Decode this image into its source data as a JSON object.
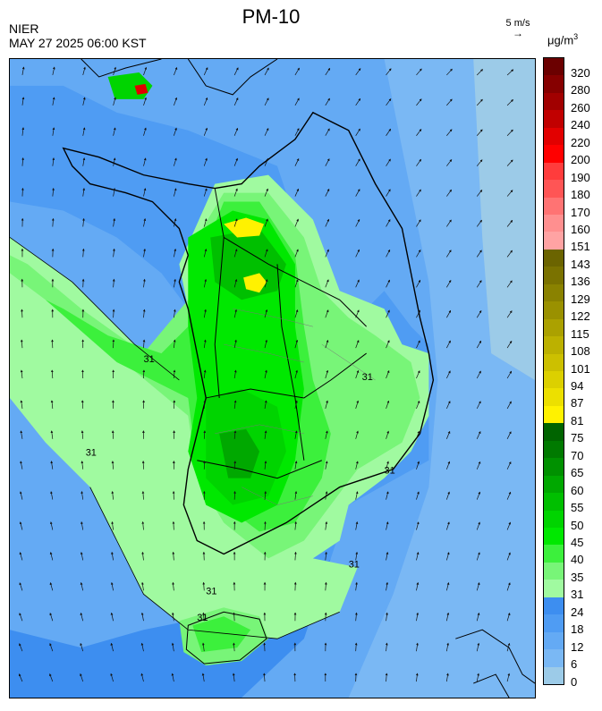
{
  "header": {
    "title": "PM-10",
    "agency": "NIER",
    "datetime": "MAY 27 2025 06:00 KST",
    "wind_scale": "5 m/s",
    "unit_prefix": "μg/m",
    "unit_sup": "3"
  },
  "legend": {
    "levels": [
      {
        "label": "320",
        "color": "#6b0000"
      },
      {
        "label": "280",
        "color": "#860000"
      },
      {
        "label": "260",
        "color": "#a10000"
      },
      {
        "label": "240",
        "color": "#c10000"
      },
      {
        "label": "220",
        "color": "#e20000"
      },
      {
        "label": "200",
        "color": "#ff0000"
      },
      {
        "label": "190",
        "color": "#ff3c3c"
      },
      {
        "label": "180",
        "color": "#ff5555"
      },
      {
        "label": "170",
        "color": "#ff7373"
      },
      {
        "label": "160",
        "color": "#ff8f8f"
      },
      {
        "label": "151",
        "color": "#ffa3a3"
      },
      {
        "label": "143",
        "color": "#6b6400"
      },
      {
        "label": "136",
        "color": "#7a7200"
      },
      {
        "label": "129",
        "color": "#8a8200"
      },
      {
        "label": "122",
        "color": "#9a9100"
      },
      {
        "label": "115",
        "color": "#aba100"
      },
      {
        "label": "108",
        "color": "#bcb100"
      },
      {
        "label": "101",
        "color": "#ccc000"
      },
      {
        "label": "94",
        "color": "#dcd000"
      },
      {
        "label": "87",
        "color": "#ece000"
      },
      {
        "label": "81",
        "color": "#fff200"
      },
      {
        "label": "75",
        "color": "#006400"
      },
      {
        "label": "70",
        "color": "#007a00"
      },
      {
        "label": "65",
        "color": "#009100"
      },
      {
        "label": "60",
        "color": "#00a800"
      },
      {
        "label": "55",
        "color": "#00bf00"
      },
      {
        "label": "50",
        "color": "#00d400"
      },
      {
        "label": "45",
        "color": "#00e800"
      },
      {
        "label": "40",
        "color": "#3cf03c"
      },
      {
        "label": "35",
        "color": "#78f578"
      },
      {
        "label": "31",
        "color": "#a0faa0"
      },
      {
        "label": "24",
        "color": "#3d8ef0"
      },
      {
        "label": "18",
        "color": "#4f9cf3"
      },
      {
        "label": "12",
        "color": "#64aaf4"
      },
      {
        "label": "6",
        "color": "#7ab8f4"
      },
      {
        "label": "0",
        "color": "#9ccbe8"
      }
    ]
  },
  "map": {
    "contour_labels": [
      "31",
      "31",
      "31",
      "31",
      "31",
      "31",
      "31"
    ]
  }
}
